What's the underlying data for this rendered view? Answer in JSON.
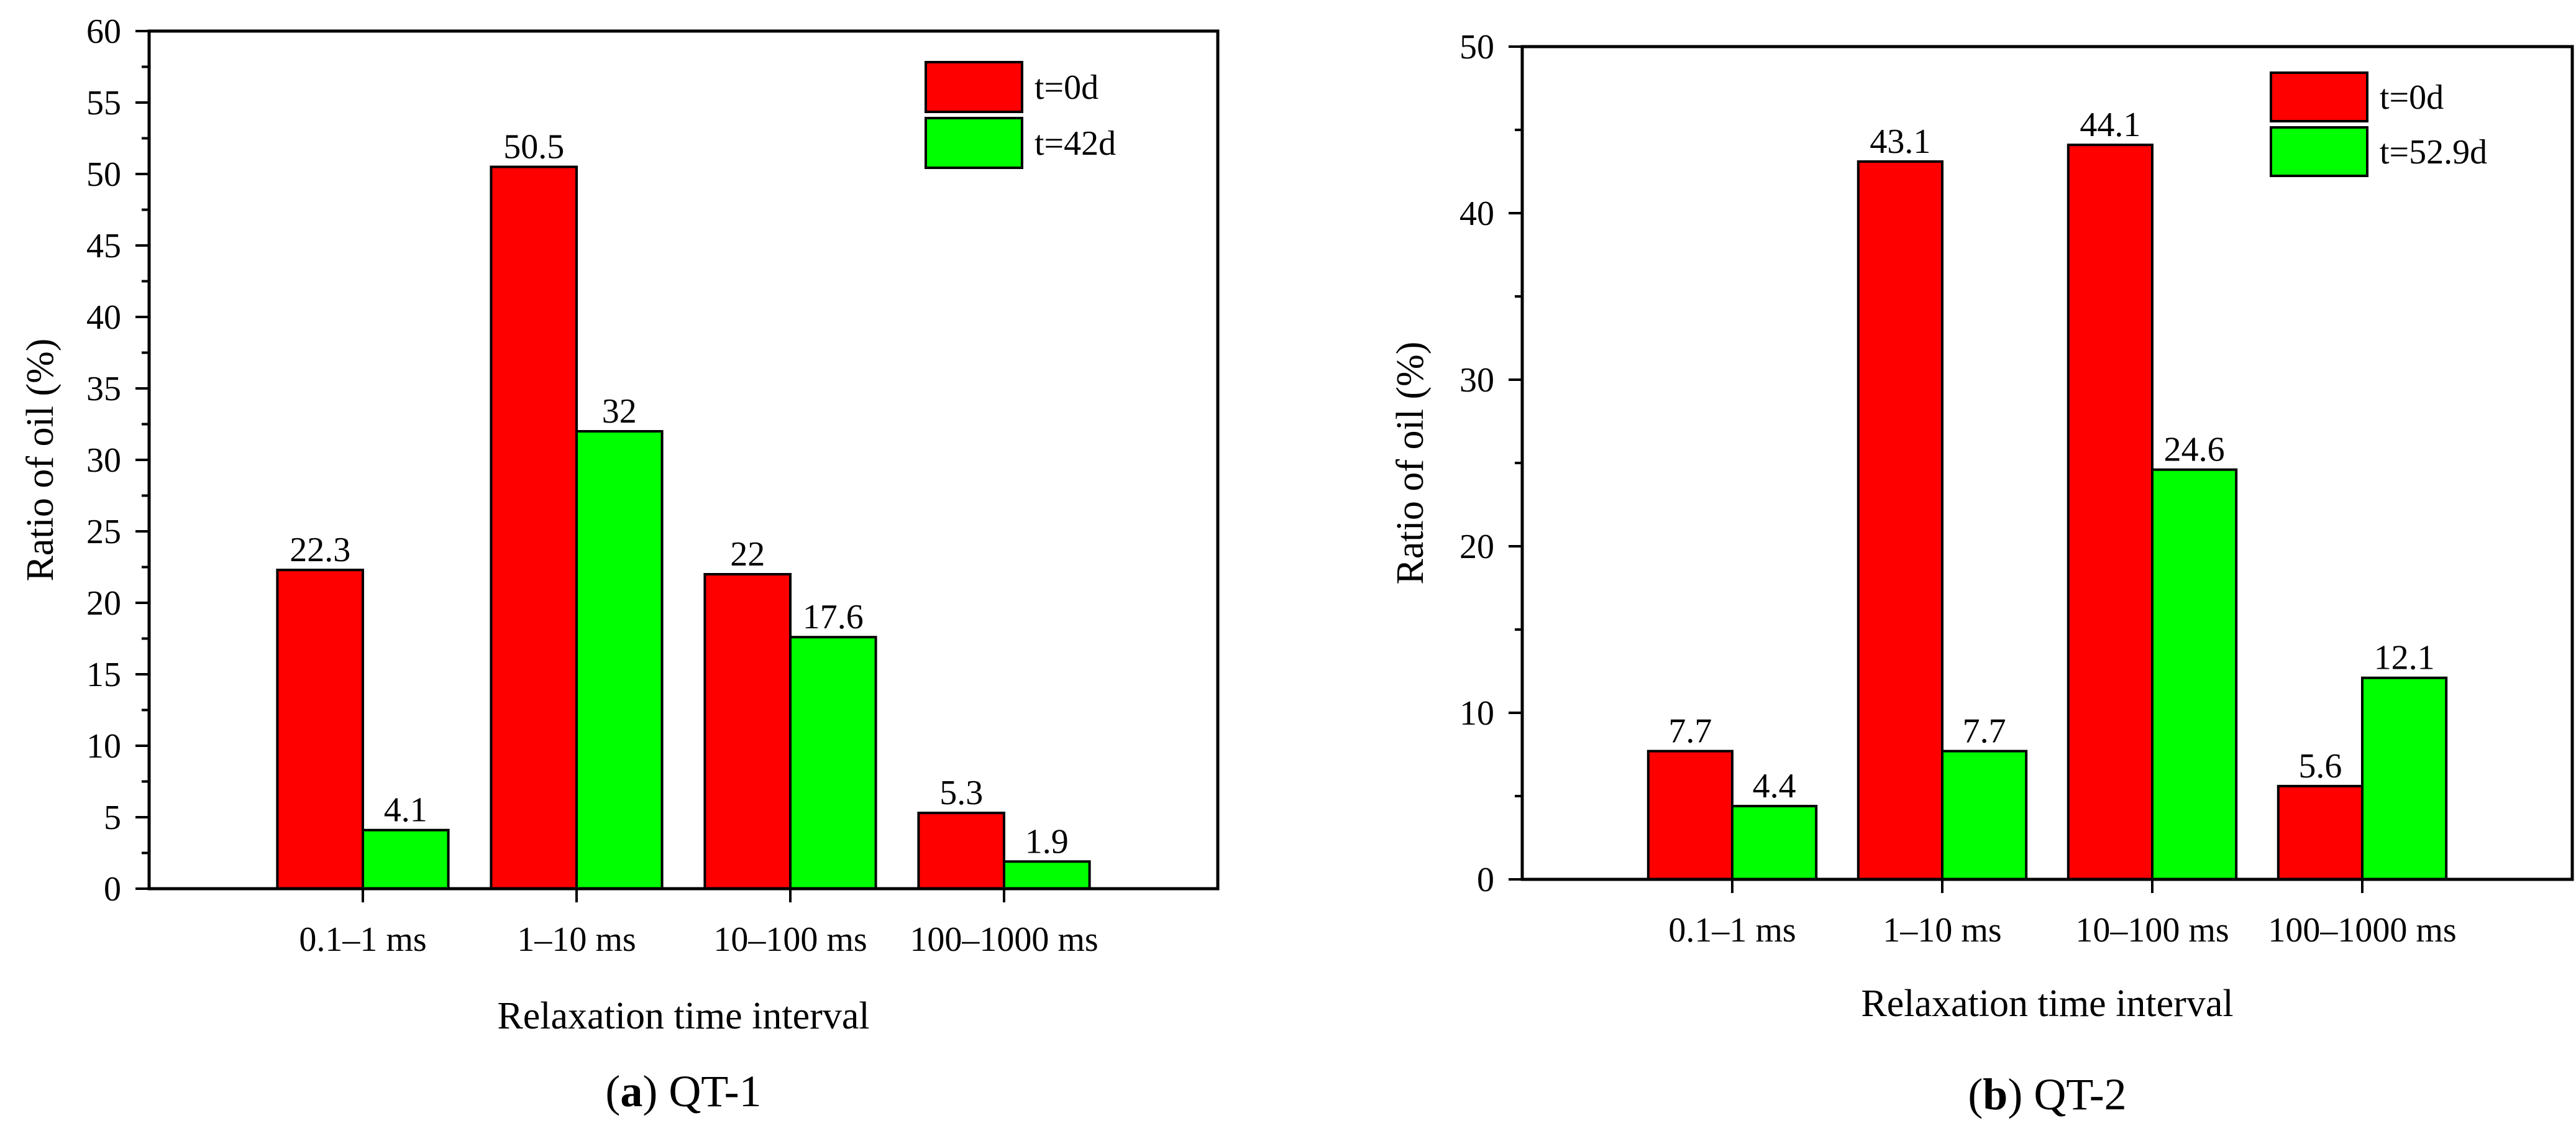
{
  "chart_data": [
    {
      "type": "bar",
      "panel": "a",
      "caption": {
        "letter": "a",
        "open": "(",
        "close": ")",
        "title": "QT-1"
      },
      "categories": [
        "0.1–1 ms",
        "1–10 ms",
        "10–100 ms",
        "100–1000 ms"
      ],
      "series": [
        {
          "name": "t=0d",
          "color": "#ff0000",
          "values": [
            22.3,
            50.5,
            22,
            5.3
          ]
        },
        {
          "name": "t=42d",
          "color": "#00ff00",
          "values": [
            4.1,
            32,
            17.6,
            1.9
          ]
        }
      ],
      "xlabel": "Relaxation time interval",
      "ylabel": "Ratio of oil (%)",
      "ylim": [
        0,
        60
      ],
      "yticks": [
        0,
        5,
        10,
        15,
        20,
        25,
        30,
        35,
        40,
        45,
        50,
        55,
        60
      ],
      "minor_step": 2.5,
      "legend_position": "top-right",
      "grid": false
    },
    {
      "type": "bar",
      "panel": "b",
      "caption": {
        "letter": "b",
        "open": "(",
        "close": ")",
        "title": "QT-2"
      },
      "categories": [
        "0.1–1 ms",
        "1–10 ms",
        "10–100 ms",
        "100–1000 ms"
      ],
      "series": [
        {
          "name": "t=0d",
          "color": "#ff0000",
          "values": [
            7.7,
            43.1,
            44.1,
            5.6
          ]
        },
        {
          "name": "t=52.9d",
          "color": "#00ff00",
          "values": [
            4.4,
            7.7,
            24.6,
            12.1
          ]
        }
      ],
      "xlabel": "Relaxation time interval",
      "ylabel": "Ratio of oil (%)",
      "ylim": [
        0,
        50
      ],
      "yticks": [
        0,
        10,
        20,
        30,
        40,
        50
      ],
      "minor_step": 5,
      "legend_position": "top-right",
      "grid": false
    }
  ]
}
